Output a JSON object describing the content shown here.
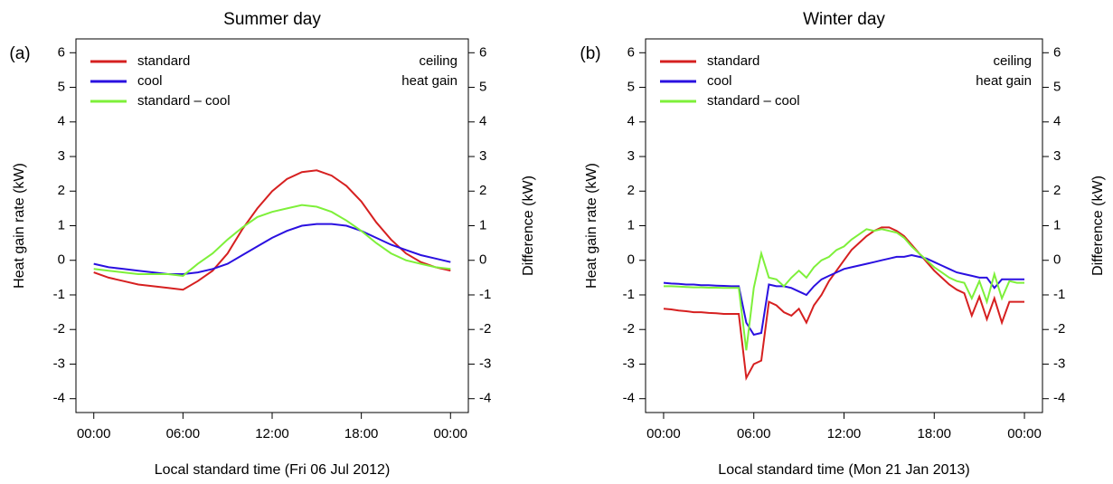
{
  "chart_data": [
    {
      "type": "line",
      "panel_label": "(a)",
      "title": "Summer day",
      "x_label": "Local standard time (Fri 06 Jul 2012)",
      "y_label": "Heat gain rate (kW)",
      "y2_label": "Difference (kW)",
      "annotation": [
        "ceiling",
        "heat gain"
      ],
      "x": [
        0,
        1,
        2,
        3,
        4,
        5,
        6,
        7,
        8,
        9,
        10,
        11,
        12,
        13,
        14,
        15,
        16,
        17,
        18,
        19,
        20,
        21,
        22,
        23,
        24
      ],
      "xlim": [
        -1.2,
        25.2
      ],
      "xticks": [
        {
          "value": 0,
          "label": "00:00"
        },
        {
          "value": 6,
          "label": "06:00"
        },
        {
          "value": 12,
          "label": "12:00"
        },
        {
          "value": 18,
          "label": "18:00"
        },
        {
          "value": 24,
          "label": "00:00"
        }
      ],
      "ylim": [
        -4.4,
        6.4
      ],
      "yticks": [
        -4,
        -3,
        -2,
        -1,
        0,
        1,
        2,
        3,
        4,
        5,
        6
      ],
      "y2lim": [
        -4.4,
        6.4
      ],
      "y2ticks": [
        -4,
        -3,
        -2,
        -1,
        0,
        1,
        2,
        3,
        4,
        5,
        6
      ],
      "legend": "upper left",
      "series": [
        {
          "name": "standard",
          "color": "#d62020",
          "values": [
            -0.35,
            -0.5,
            -0.6,
            -0.7,
            -0.75,
            -0.8,
            -0.85,
            -0.6,
            -0.3,
            0.2,
            0.9,
            1.5,
            2.0,
            2.35,
            2.55,
            2.6,
            2.45,
            2.15,
            1.7,
            1.1,
            0.6,
            0.2,
            -0.05,
            -0.2,
            -0.3
          ]
        },
        {
          "name": "cool",
          "color": "#2a10e0",
          "values": [
            -0.1,
            -0.2,
            -0.25,
            -0.3,
            -0.35,
            -0.4,
            -0.4,
            -0.35,
            -0.25,
            -0.1,
            0.15,
            0.4,
            0.65,
            0.85,
            1.0,
            1.05,
            1.05,
            1.0,
            0.85,
            0.65,
            0.45,
            0.3,
            0.15,
            0.05,
            -0.05
          ]
        },
        {
          "name": "standard – cool",
          "color": "#7ef03a",
          "axis": "y2",
          "values": [
            -0.25,
            -0.3,
            -0.35,
            -0.4,
            -0.4,
            -0.4,
            -0.45,
            -0.1,
            0.2,
            0.6,
            0.95,
            1.25,
            1.4,
            1.5,
            1.6,
            1.55,
            1.4,
            1.15,
            0.85,
            0.5,
            0.2,
            0.0,
            -0.1,
            -0.2,
            -0.25
          ]
        }
      ]
    },
    {
      "type": "line",
      "panel_label": "(b)",
      "title": "Winter day",
      "x_label": "Local standard time (Mon 21 Jan 2013)",
      "y_label": "Heat gain rate (kW)",
      "y2_label": "Difference (kW)",
      "annotation": [
        "ceiling",
        "heat gain"
      ],
      "x": [
        0,
        0.5,
        1,
        1.5,
        2,
        2.5,
        3,
        3.5,
        4,
        4.5,
        5,
        5.5,
        6,
        6.5,
        7,
        7.5,
        8,
        8.5,
        9,
        9.5,
        10,
        10.5,
        11,
        11.5,
        12,
        12.5,
        13,
        13.5,
        14,
        14.5,
        15,
        15.5,
        16,
        16.5,
        17,
        17.5,
        18,
        18.5,
        19,
        19.5,
        20,
        20.5,
        21,
        21.5,
        22,
        22.5,
        23,
        23.5,
        24
      ],
      "xlim": [
        -1.2,
        25.2
      ],
      "xticks": [
        {
          "value": 0,
          "label": "00:00"
        },
        {
          "value": 6,
          "label": "06:00"
        },
        {
          "value": 12,
          "label": "12:00"
        },
        {
          "value": 18,
          "label": "18:00"
        },
        {
          "value": 24,
          "label": "00:00"
        }
      ],
      "ylim": [
        -4.4,
        6.4
      ],
      "yticks": [
        -4,
        -3,
        -2,
        -1,
        0,
        1,
        2,
        3,
        4,
        5,
        6
      ],
      "y2lim": [
        -4.4,
        6.4
      ],
      "y2ticks": [
        -4,
        -3,
        -2,
        -1,
        0,
        1,
        2,
        3,
        4,
        5,
        6
      ],
      "legend": "upper left",
      "series": [
        {
          "name": "standard",
          "color": "#d62020",
          "values": [
            -1.4,
            -1.42,
            -1.45,
            -1.47,
            -1.5,
            -1.5,
            -1.52,
            -1.53,
            -1.55,
            -1.55,
            -1.55,
            -3.4,
            -3.0,
            -2.9,
            -1.2,
            -1.3,
            -1.5,
            -1.6,
            -1.4,
            -1.8,
            -1.3,
            -1.0,
            -0.6,
            -0.3,
            0.0,
            0.3,
            0.5,
            0.7,
            0.85,
            0.95,
            0.95,
            0.85,
            0.7,
            0.45,
            0.2,
            -0.05,
            -0.3,
            -0.5,
            -0.7,
            -0.85,
            -0.95,
            -1.6,
            -1.05,
            -1.7,
            -1.1,
            -1.8,
            -1.2,
            -1.2,
            -1.2
          ]
        },
        {
          "name": "cool",
          "color": "#2a10e0",
          "values": [
            -0.65,
            -0.67,
            -0.68,
            -0.7,
            -0.7,
            -0.72,
            -0.72,
            -0.73,
            -0.74,
            -0.75,
            -0.75,
            -1.8,
            -2.15,
            -2.1,
            -0.7,
            -0.75,
            -0.75,
            -0.8,
            -0.9,
            -1.0,
            -0.75,
            -0.55,
            -0.45,
            -0.35,
            -0.25,
            -0.2,
            -0.15,
            -0.1,
            -0.05,
            0.0,
            0.05,
            0.1,
            0.1,
            0.15,
            0.1,
            0.05,
            -0.05,
            -0.15,
            -0.25,
            -0.35,
            -0.4,
            -0.45,
            -0.5,
            -0.5,
            -0.8,
            -0.55,
            -0.55,
            -0.55,
            -0.55
          ]
        },
        {
          "name": "standard – cool",
          "color": "#7ef03a",
          "axis": "y2",
          "values": [
            -0.75,
            -0.75,
            -0.76,
            -0.77,
            -0.78,
            -0.78,
            -0.79,
            -0.79,
            -0.8,
            -0.8,
            -0.8,
            -2.6,
            -0.8,
            0.2,
            -0.5,
            -0.55,
            -0.75,
            -0.5,
            -0.3,
            -0.5,
            -0.2,
            0.0,
            0.1,
            0.3,
            0.4,
            0.6,
            0.75,
            0.9,
            0.85,
            0.9,
            0.85,
            0.8,
            0.65,
            0.4,
            0.2,
            0.0,
            -0.2,
            -0.35,
            -0.5,
            -0.6,
            -0.65,
            -1.1,
            -0.6,
            -1.2,
            -0.4,
            -1.1,
            -0.6,
            -0.65,
            -0.65
          ]
        }
      ]
    }
  ]
}
